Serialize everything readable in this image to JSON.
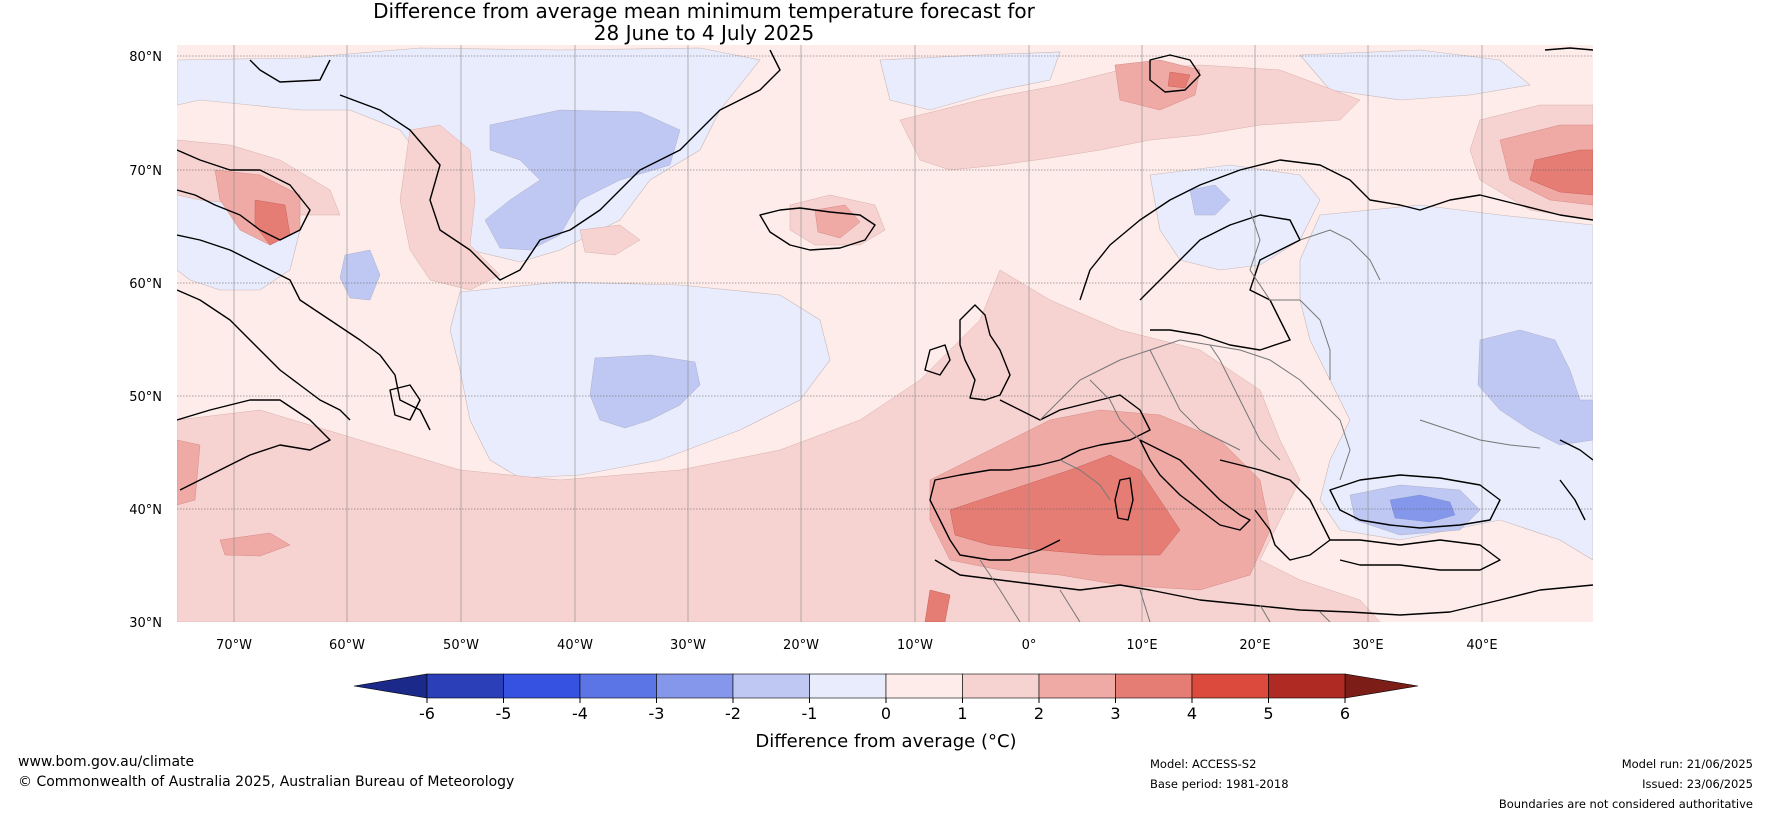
{
  "title_line1": "Difference from average mean minimum temperature forecast for",
  "title_line2": "28 June to 4 July 2025",
  "lat_labels": [
    "80°N",
    "70°N",
    "60°N",
    "50°N",
    "40°N",
    "30°N"
  ],
  "lon_labels": [
    "70°W",
    "60°W",
    "50°W",
    "40°W",
    "30°W",
    "20°W",
    "10°W",
    "0°",
    "10°E",
    "20°E",
    "30°E",
    "40°E"
  ],
  "colorbar": {
    "title": "Difference from average (°C)",
    "ticks": [
      "-6",
      "-5",
      "-4",
      "-3",
      "-2",
      "-1",
      "0",
      "1",
      "2",
      "3",
      "4",
      "5",
      "6"
    ],
    "colors": [
      "#1b2a8a",
      "#2a3fb8",
      "#3553e0",
      "#5b75e6",
      "#8597ea",
      "#bfc8f3",
      "#e8ecfc",
      "#fdecea",
      "#f6d2d0",
      "#efaaa6",
      "#e57d74",
      "#dc4a3e",
      "#b02a24",
      "#7d1d18"
    ]
  },
  "footer": {
    "url": "www.bom.gov.au/climate",
    "copyright": "© Commonwealth of Australia 2025, Australian Bureau of Meteorology",
    "model": "Model: ACCESS-S2",
    "base_period": "Base period: 1981-2018",
    "model_run": "Model run: 21/06/2025",
    "issued": "Issued: 23/06/2025",
    "boundaries": "Boundaries are not considered authoritative"
  }
}
